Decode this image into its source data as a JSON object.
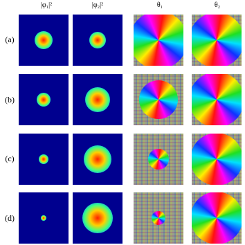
{
  "columns": [
    "|φ₁|²",
    "|φ₂|²",
    "θ₁",
    "θ₂"
  ],
  "rows": [
    "(a)",
    "(b)",
    "(c)",
    "(d)"
  ]
}
